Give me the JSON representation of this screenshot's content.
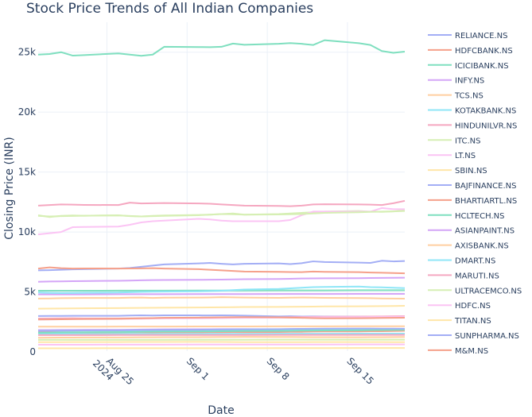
{
  "chart_data": {
    "type": "line",
    "title": "Stock Price Trends of All Indian Companies",
    "xlabel": "Date",
    "ylabel": "Closing Price (INR)",
    "x_start": "2024-08-19",
    "x_end": "2024-09-20",
    "x_ticks": [
      {
        "date": "2024-08-25",
        "label": "Aug 25",
        "sublabel": "2024"
      },
      {
        "date": "2024-09-01",
        "label": "Sep 1",
        "sublabel": ""
      },
      {
        "date": "2024-09-08",
        "label": "Sep 8",
        "sublabel": ""
      },
      {
        "date": "2024-09-15",
        "label": "Sep 15",
        "sublabel": ""
      }
    ],
    "ylim": [
      0,
      27500
    ],
    "y_ticks": [
      {
        "value": 0,
        "label": "0"
      },
      {
        "value": 5000,
        "label": "5k"
      },
      {
        "value": 10000,
        "label": "10k"
      },
      {
        "value": 15000,
        "label": "15k"
      },
      {
        "value": 20000,
        "label": "20k"
      },
      {
        "value": 25000,
        "label": "25k"
      }
    ],
    "grid": true,
    "legend_position": "right",
    "x": [
      "2024-08-19",
      "2024-08-20",
      "2024-08-21",
      "2024-08-22",
      "2024-08-23",
      "2024-08-26",
      "2024-08-27",
      "2024-08-28",
      "2024-08-29",
      "2024-08-30",
      "2024-09-02",
      "2024-09-03",
      "2024-09-04",
      "2024-09-05",
      "2024-09-06",
      "2024-09-09",
      "2024-09-10",
      "2024-09-11",
      "2024-09-12",
      "2024-09-13",
      "2024-09-16",
      "2024-09-17",
      "2024-09-18",
      "2024-09-19",
      "2024-09-20"
    ],
    "series": [
      {
        "name": "RELIANCE.NS",
        "color": "#a3aef5",
        "values": [
          2990,
          2995,
          3000,
          3005,
          3010,
          3010,
          3030,
          3045,
          3030,
          3050,
          3045,
          3040,
          3050,
          3040,
          3020,
          2960,
          2975,
          2950,
          2960,
          2950,
          2940,
          2945,
          2930,
          2940,
          2950
        ]
      },
      {
        "name": "HDFCBANK.NS",
        "color": "#f5a08a",
        "values": [
          1630,
          1635,
          1640,
          1630,
          1625,
          1630,
          1640,
          1640,
          1635,
          1640,
          1640,
          1645,
          1650,
          1655,
          1650,
          1660,
          1670,
          1675,
          1700,
          1705,
          1710,
          1720,
          1725,
          1740,
          1760
        ]
      },
      {
        "name": "ICICIBANK.NS",
        "color": "#7fdfbf",
        "values": [
          24800,
          24850,
          25000,
          24720,
          24760,
          24900,
          24800,
          24700,
          24800,
          25450,
          25430,
          25420,
          25450,
          25720,
          25620,
          25700,
          25760,
          25700,
          25600,
          26000,
          25750,
          25600,
          25100,
          24950,
          25050
        ]
      },
      {
        "name": "INFY.NS",
        "color": "#d4a5f7",
        "values": [
          1820,
          1825,
          1830,
          1830,
          1835,
          1840,
          1850,
          1860,
          1870,
          1880,
          1885,
          1890,
          1900,
          1900,
          1895,
          1880,
          1890,
          1895,
          1900,
          1910,
          1915,
          1920,
          1910,
          1905,
          1900
        ]
      },
      {
        "name": "TCS.NS",
        "color": "#ffcfa0",
        "values": [
          4450,
          4460,
          4480,
          4490,
          4500,
          4500,
          4520,
          4530,
          4500,
          4520,
          4530,
          4540,
          4560,
          4550,
          4530,
          4510,
          4520,
          4530,
          4520,
          4510,
          4490,
          4480,
          4460,
          4450,
          4440
        ]
      },
      {
        "name": "KOTAKBANK.NS",
        "color": "#8fe6f7",
        "values": [
          1760,
          1765,
          1770,
          1775,
          1780,
          1780,
          1790,
          1795,
          1800,
          1810,
          1815,
          1820,
          1830,
          1835,
          1840,
          1840,
          1850,
          1860,
          1870,
          1880,
          1880,
          1885,
          1890,
          1895,
          1900
        ]
      },
      {
        "name": "HINDUNILVR.NS",
        "color": "#f5a7c0",
        "values": [
          2780,
          2790,
          2800,
          2810,
          2790,
          2790,
          2800,
          2810,
          2820,
          2830,
          2850,
          2860,
          2870,
          2880,
          2870,
          2880,
          2900,
          2910,
          2920,
          2930,
          2940,
          2950,
          2960,
          2970,
          2980
        ]
      },
      {
        "name": "ITC.NS",
        "color": "#d6efb4",
        "values": [
          11400,
          11250,
          11350,
          11380,
          11360,
          11400,
          11320,
          11300,
          11350,
          11380,
          11420,
          11450,
          11500,
          11550,
          11450,
          11500,
          11550,
          11600,
          11650,
          11700,
          11750,
          11700,
          11680,
          11720,
          11800
        ]
      },
      {
        "name": "LT.NS",
        "color": "#fbc4f4",
        "values": [
          9800,
          9900,
          10000,
          10400,
          10420,
          10450,
          10600,
          10800,
          10900,
          10950,
          11100,
          11050,
          10950,
          10900,
          10900,
          10900,
          11000,
          11400,
          11700,
          11700,
          11700,
          11700,
          12000,
          11900,
          11900
        ]
      },
      {
        "name": "SBIN.NS",
        "color": "#ffe6a8",
        "values": [
          810,
          812,
          815,
          818,
          820,
          822,
          825,
          828,
          830,
          832,
          835,
          830,
          825,
          820,
          815,
          810,
          812,
          815,
          818,
          820,
          822,
          820,
          818,
          815,
          812
        ]
      },
      {
        "name": "BAJFINANCE.NS",
        "color": "#a3aef5",
        "values": [
          6800,
          6820,
          6850,
          6880,
          6900,
          6950,
          7000,
          7100,
          7200,
          7300,
          7380,
          7420,
          7350,
          7300,
          7350,
          7380,
          7320,
          7400,
          7550,
          7500,
          7450,
          7420,
          7600,
          7550,
          7580
        ]
      },
      {
        "name": "BHARTIARTL.NS",
        "color": "#f5a08a",
        "values": [
          6950,
          7050,
          6980,
          6950,
          6960,
          6950,
          6960,
          6970,
          6980,
          6950,
          6900,
          6850,
          6800,
          6750,
          6700,
          6680,
          6660,
          6650,
          6700,
          6680,
          6650,
          6620,
          6600,
          6580,
          6550
        ]
      },
      {
        "name": "HCLTECH.NS",
        "color": "#7fdfbf",
        "values": [
          1600,
          1610,
          1620,
          1630,
          1640,
          1650,
          1660,
          1670,
          1680,
          1690,
          1700,
          1710,
          1720,
          1730,
          1740,
          1750,
          1760,
          1770,
          1780,
          1790,
          1800,
          1810,
          1820,
          1830,
          1840
        ]
      },
      {
        "name": "ASIANPAINT.NS",
        "color": "#d4a5f7",
        "values": [
          5850,
          5870,
          5880,
          5900,
          5910,
          5930,
          5950,
          5970,
          5990,
          6000,
          6010,
          6020,
          6030,
          6050,
          6060,
          6080,
          6100,
          6120,
          6130,
          6140,
          6150,
          6160,
          6170,
          6180,
          6190
        ]
      },
      {
        "name": "AXISBANK.NS",
        "color": "#ffcfa0",
        "values": [
          1180,
          1185,
          1190,
          1195,
          1200,
          1205,
          1210,
          1215,
          1220,
          1225,
          1230,
          1235,
          1240,
          1245,
          1250,
          1245,
          1240,
          1235,
          1230,
          1225,
          1220,
          1225,
          1230,
          1235,
          1240
        ]
      },
      {
        "name": "DMART.NS",
        "color": "#8fe6f7",
        "values": [
          4950,
          4920,
          4900,
          4910,
          4930,
          4950,
          4980,
          5000,
          5020,
          5030,
          5050,
          5080,
          5100,
          5150,
          5200,
          5250,
          5300,
          5350,
          5400,
          5420,
          5450,
          5400,
          5380,
          5350,
          5320
        ]
      },
      {
        "name": "MARUTI.NS",
        "color": "#f5a7c0",
        "values": [
          12200,
          12250,
          12300,
          12280,
          12260,
          12250,
          12450,
          12380,
          12400,
          12420,
          12380,
          12360,
          12300,
          12250,
          12200,
          12180,
          12150,
          12200,
          12300,
          12320,
          12300,
          12280,
          12250,
          12400,
          12600
        ]
      },
      {
        "name": "ULTRACEMCO.NS",
        "color": "#d6efb4",
        "values": [
          11350,
          11300,
          11320,
          11340,
          11360,
          11380,
          11340,
          11300,
          11320,
          11350,
          11400,
          11450,
          11500,
          11480,
          11450,
          11460,
          11480,
          11500,
          11550,
          11600,
          11650,
          11680,
          11700,
          11720,
          11750
        ]
      },
      {
        "name": "HDFC.NS",
        "color": "#fbc4f4",
        "values": [
          2700,
          2710,
          2720,
          2730,
          2740,
          2750,
          2760,
          2770,
          2780,
          2790,
          2800,
          2810,
          2820,
          2830,
          2840,
          2850,
          2860,
          2870,
          2880,
          2890,
          2900,
          2910,
          2920,
          2930,
          2940
        ]
      },
      {
        "name": "TITAN.NS",
        "color": "#ffe6a8",
        "values": [
          3600,
          3610,
          3620,
          3630,
          3640,
          3650,
          3660,
          3670,
          3680,
          3690,
          3700,
          3710,
          3720,
          3730,
          3740,
          3750,
          3760,
          3770,
          3780,
          3790,
          3800,
          3810,
          3820,
          3830,
          3840
        ]
      },
      {
        "name": "SUNPHARMA.NS",
        "color": "#a3aef5",
        "values": [
          1750,
          1760,
          1770,
          1780,
          1790,
          1800,
          1810,
          1820,
          1830,
          1840,
          1850,
          1860,
          1870,
          1880,
          1890,
          1900,
          1910,
          1920,
          1930,
          1940,
          1950,
          1945,
          1940,
          1935,
          1930
        ]
      },
      {
        "name": "M&M.NS",
        "color": "#f5a08a",
        "values": [
          2700,
          2710,
          2720,
          2730,
          2740,
          2760,
          2780,
          2800,
          2820,
          2840,
          2860,
          2870,
          2880,
          2890,
          2900,
          2880,
          2860,
          2840,
          2820,
          2800,
          2810,
          2820,
          2830,
          2840,
          2850
        ]
      }
    ],
    "extra_series_colors": [
      "#7fdfbf",
      "#d4a5f7",
      "#ffcfa0",
      "#8fe6f7",
      "#f5a7c0",
      "#d6efb4",
      "#fbc4f4",
      "#ffe6a8"
    ],
    "extra_series_values": [
      [
        5100,
        5110,
        5120,
        5130,
        5140
      ],
      [
        4800,
        4810,
        4820,
        4830,
        4840
      ],
      [
        2100,
        2110,
        2120,
        2130,
        2140
      ],
      [
        1500,
        1505,
        1510,
        1515,
        1520
      ],
      [
        1400,
        1405,
        1410,
        1415,
        1420
      ],
      [
        1000,
        1005,
        1010,
        1015,
        1020
      ],
      [
        600,
        605,
        610,
        615,
        620
      ],
      [
        300,
        305,
        310,
        315,
        320
      ]
    ]
  }
}
